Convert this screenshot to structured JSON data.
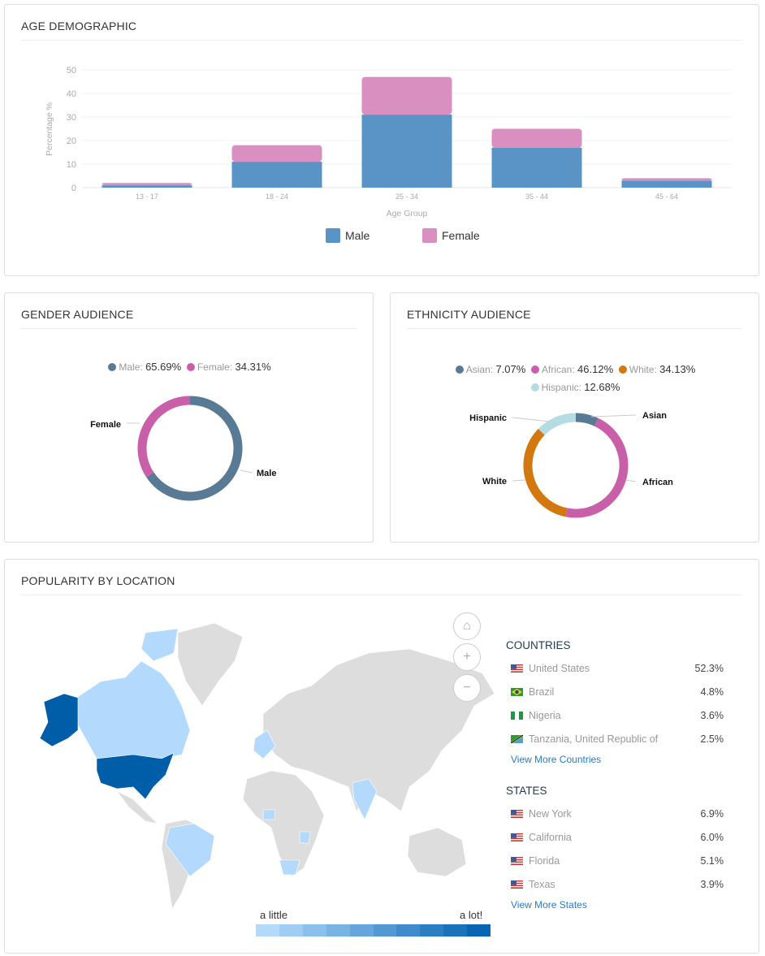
{
  "age": {
    "title": "AGE DEMOGRAPHIC"
  },
  "gender": {
    "title": "GENDER AUDIENCE",
    "legend": [
      {
        "label": "Male:",
        "value": "65.69%",
        "color": "#587a94"
      },
      {
        "label": "Female:",
        "value": "34.31%",
        "color": "#c95fa8"
      }
    ],
    "labels": {
      "male": "Male",
      "female": "Female"
    }
  },
  "ethnicity": {
    "title": "ETHNICITY AUDIENCE",
    "legend": [
      {
        "label": "Asian:",
        "value": "7.07%",
        "color": "#587a94"
      },
      {
        "label": "African:",
        "value": "46.12%",
        "color": "#c95fa8"
      },
      {
        "label": "White:",
        "value": "34.13%",
        "color": "#d2780f"
      },
      {
        "label": "Hispanic:",
        "value": "12.68%",
        "color": "#b3dde3"
      }
    ],
    "labels": {
      "asian": "Asian",
      "african": "African",
      "white": "White",
      "hispanic": "Hispanic"
    }
  },
  "location": {
    "title": "POPULARITY BY LOCATION",
    "scale": {
      "low": "a little",
      "high": "a lot!"
    },
    "countries": {
      "title": "COUNTRIES",
      "items": [
        {
          "name": "United States",
          "value": "52.3%",
          "flag": "us"
        },
        {
          "name": "Brazil",
          "value": "4.8%",
          "flag": "br"
        },
        {
          "name": "Nigeria",
          "value": "3.6%",
          "flag": "ng"
        },
        {
          "name": "Tanzania, United Republic of",
          "value": "2.5%",
          "flag": "tz"
        }
      ],
      "more": "View More Countries"
    },
    "states": {
      "title": "STATES",
      "items": [
        {
          "name": "New York",
          "value": "6.9%",
          "flag": "us"
        },
        {
          "name": "California",
          "value": "6.0%",
          "flag": "us"
        },
        {
          "name": "Florida",
          "value": "5.1%",
          "flag": "us"
        },
        {
          "name": "Texas",
          "value": "3.9%",
          "flag": "us"
        }
      ],
      "more": "View More States"
    },
    "controls": {
      "home": "home-icon",
      "zoom_in": "+",
      "zoom_out": "−"
    }
  },
  "chart_data": [
    {
      "type": "bar",
      "stacked": true,
      "title": "",
      "xlabel": "Age Group",
      "ylabel": "Percentage %",
      "ylim": [
        0,
        50
      ],
      "yticks": [
        0,
        10,
        20,
        30,
        40,
        50
      ],
      "categories": [
        "13 - 17",
        "18 - 24",
        "25 - 34",
        "35 - 44",
        "45 - 64"
      ],
      "series": [
        {
          "name": "Male",
          "color": "#5a93c6",
          "values": [
            1,
            11,
            31,
            17,
            3
          ]
        },
        {
          "name": "Female",
          "color": "#d990c1",
          "values": [
            1,
            7,
            16,
            8,
            1
          ]
        }
      ],
      "legend": "bottom",
      "grid": true
    },
    {
      "type": "pie",
      "donut": true,
      "categories": [
        "Male",
        "Female"
      ],
      "values": [
        65.69,
        34.31
      ],
      "colors": [
        "#587a94",
        "#c95fa8"
      ]
    },
    {
      "type": "pie",
      "donut": true,
      "categories": [
        "Asian",
        "African",
        "White",
        "Hispanic"
      ],
      "values": [
        7.07,
        46.12,
        34.13,
        12.68
      ],
      "colors": [
        "#587a94",
        "#c95fa8",
        "#d2780f",
        "#b3dde3"
      ]
    }
  ]
}
